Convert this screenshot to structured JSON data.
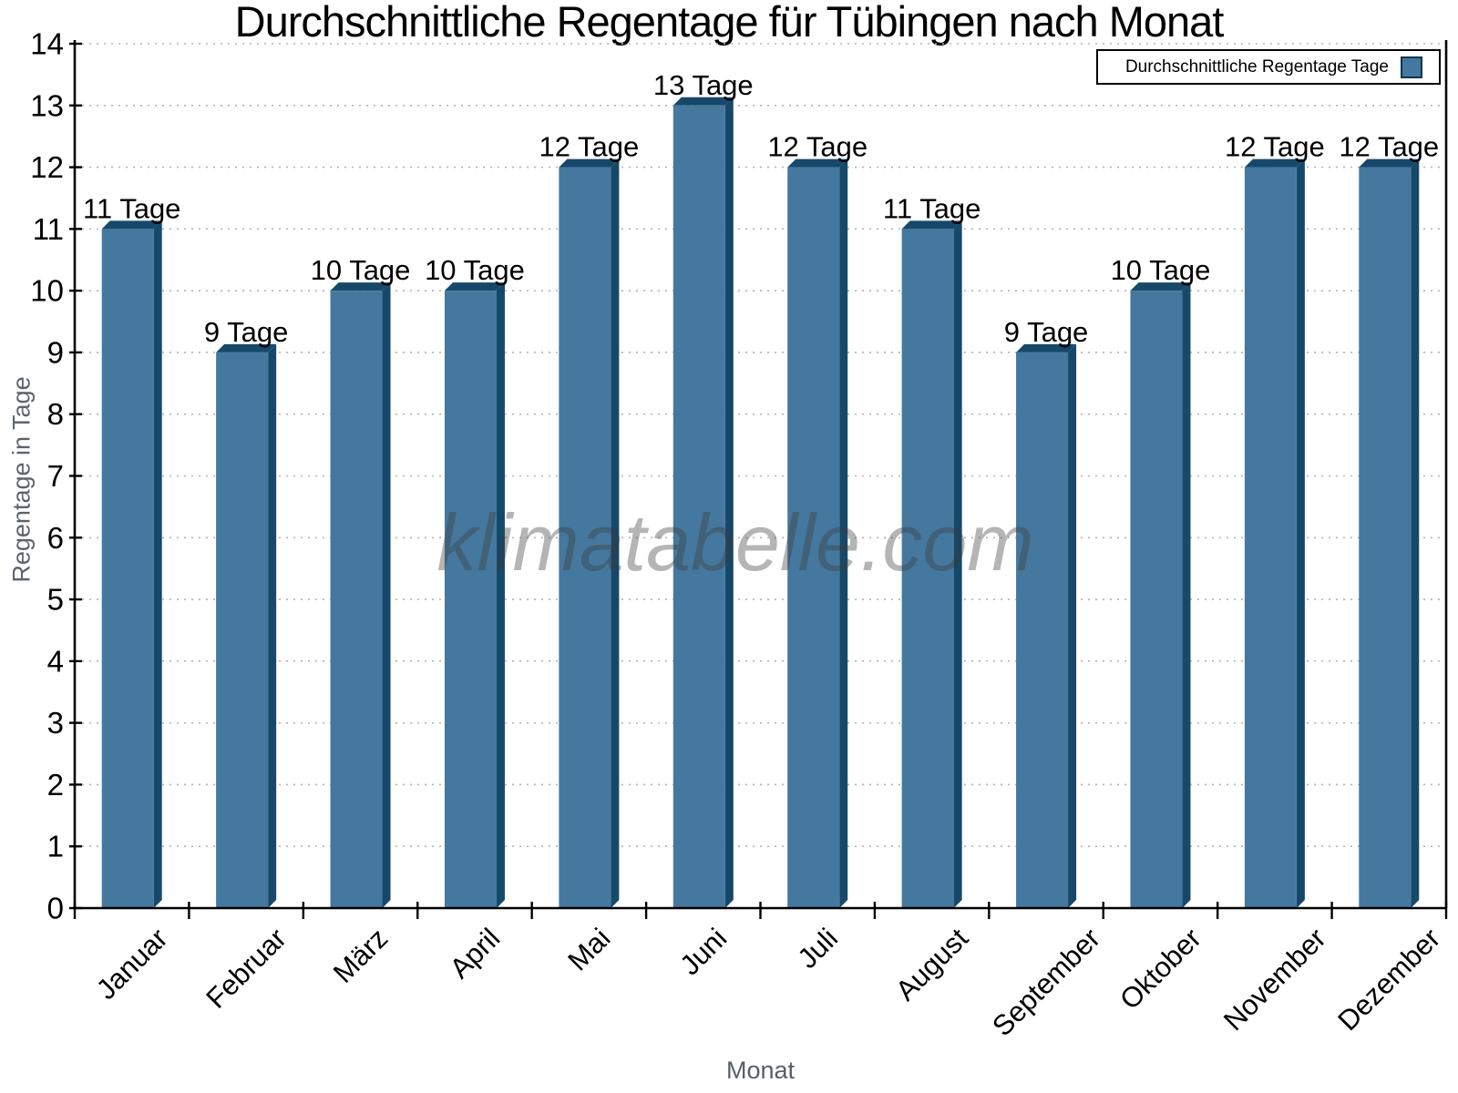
{
  "title": "Durchschnittliche Regentage für Tübingen nach Monat",
  "watermark": "klimatabelle.com",
  "legend": {
    "label": "Durchschnittliche Regentage Tage"
  },
  "chart_data": {
    "type": "bar",
    "title": "Durchschnittliche Regentage für Tübingen nach Monat",
    "categories": [
      "Januar",
      "Februar",
      "März",
      "April",
      "Mai",
      "Juni",
      "Juli",
      "August",
      "September",
      "Oktober",
      "November",
      "Dezember"
    ],
    "series": [
      {
        "name": "Durchschnittliche Regentage Tage",
        "values": [
          11,
          9,
          10,
          10,
          12,
          13,
          12,
          11,
          9,
          10,
          12,
          12
        ]
      }
    ],
    "bar_value_labels": [
      "11 Tage",
      "9 Tage",
      "10 Tage",
      "10 Tage",
      "12 Tage",
      "13 Tage",
      "12 Tage",
      "11 Tage",
      "9 Tage",
      "10 Tage",
      "12 Tage",
      "12 Tage"
    ],
    "value_label_suffix": " Tage",
    "xlabel": "Monat",
    "ylabel": "Regentage in Tage",
    "ylim": [
      0,
      14
    ],
    "y_ticks": [
      0,
      1,
      2,
      3,
      4,
      5,
      6,
      7,
      8,
      9,
      10,
      11,
      12,
      13,
      14
    ],
    "grid": "horizontal-dotted",
    "legend_position": "top-right",
    "bar_style": "3d-extruded",
    "colors": {
      "bar_fill": "#45789e",
      "bar_side": "#16486a",
      "grid": "#b3b3b3",
      "axis": "#000000",
      "tick_label_text": "#000000",
      "axis_title_text": "#5a646e",
      "watermark_text": "#a7a7a7"
    }
  }
}
